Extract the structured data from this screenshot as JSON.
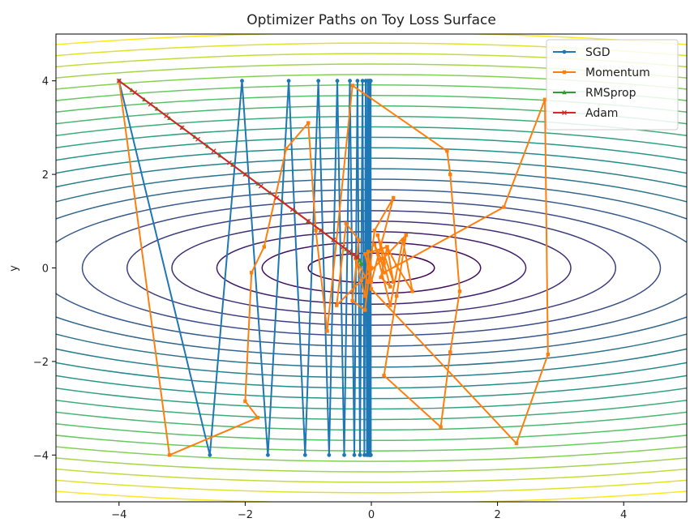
{
  "chart_data": {
    "type": "line",
    "title": "Optimizer Paths on Toy Loss Surface",
    "xlabel": "",
    "ylabel": "y",
    "xlim": [
      -5,
      5
    ],
    "ylim": [
      -5,
      5
    ],
    "x_ticks": [
      -4,
      -2,
      0,
      2,
      4
    ],
    "y_ticks": [
      -4,
      -2,
      0,
      2,
      4
    ],
    "x_tick_labels": [
      "−4",
      "−2",
      "0",
      "2",
      "4"
    ],
    "y_tick_labels": [
      "−4",
      "−2",
      "0",
      "2",
      "4"
    ],
    "grid": false,
    "legend_position": "top-right",
    "background": {
      "type": "contour",
      "function": "x^2 + 10*y^2",
      "levels": [
        1,
        3,
        6,
        10,
        15,
        21,
        28,
        36,
        45,
        55,
        66,
        78,
        91,
        105,
        120,
        136,
        153,
        171,
        190,
        210,
        231,
        253
      ],
      "colormap": [
        "#440154",
        "#3b528b",
        "#21918c",
        "#5ec962",
        "#fde725"
      ]
    },
    "series": [
      {
        "name": "SGD",
        "color": "#1f77b4",
        "marker": "circle",
        "x": [
          -4.0,
          -2.56,
          -2.05,
          -1.64,
          -1.31,
          -1.05,
          -0.84,
          -0.67,
          -0.54,
          -0.43,
          -0.34,
          -0.27,
          -0.22,
          -0.18,
          -0.14,
          -0.11,
          -0.09,
          -0.07,
          -0.06,
          -0.05,
          -0.04,
          -0.03,
          -0.025,
          -0.02,
          -0.015,
          -0.012,
          -0.01,
          -0.008
        ],
        "y": [
          4.0,
          -4.0,
          4.0,
          -4.0,
          4.0,
          -4.0,
          4.0,
          -4.0,
          4.0,
          -4.0,
          4.0,
          -4.0,
          4.0,
          -4.0,
          4.0,
          -4.0,
          4.0,
          -4.0,
          4.0,
          -4.0,
          4.0,
          -4.0,
          4.0,
          -4.0,
          4.0,
          -4.0,
          4.0,
          -4.0
        ]
      },
      {
        "name": "Momentum",
        "color": "#ff7f0e",
        "marker": "square",
        "x": [
          -4.0,
          -3.2,
          -1.8,
          -2.0,
          -1.9,
          -1.7,
          -1.35,
          -1.0,
          -0.88,
          -0.7,
          -0.3,
          1.2,
          1.25,
          1.4,
          1.25,
          1.1,
          0.2,
          0.4,
          0.55,
          -0.55,
          -0.4,
          -0.2,
          -0.3,
          -0.1,
          0.05,
          0.35,
          0.0,
          -0.1,
          0.25,
          0.35,
          0.1,
          0.2,
          0.3,
          0.15,
          0.25,
          0.4,
          0.65,
          0.5,
          0.3,
          0.05,
          0.15,
          0.2,
          2.1,
          2.75,
          2.8,
          2.3,
          0.0,
          -0.05,
          -0.1,
          -0.25,
          -0.05,
          0.0,
          -0.02,
          0.0
        ],
        "y": [
          4.0,
          -4.0,
          -3.2,
          -2.85,
          -0.1,
          0.45,
          2.55,
          3.1,
          0.8,
          -1.35,
          3.9,
          2.5,
          2.0,
          -0.5,
          -1.8,
          -3.4,
          -2.3,
          -0.6,
          0.7,
          -0.8,
          0.95,
          0.6,
          -0.7,
          -0.9,
          0.8,
          1.5,
          -0.3,
          0.3,
          0.45,
          -0.3,
          0.7,
          0.1,
          -0.4,
          -0.2,
          0.45,
          0.05,
          -0.5,
          0.6,
          -0.8,
          0.5,
          0.2,
          -0.1,
          1.3,
          3.6,
          -1.85,
          -3.75,
          -0.45,
          0.35,
          -0.6,
          0.2,
          -0.3,
          0.0,
          0.05,
          0.0
        ]
      },
      {
        "name": "RMSprop",
        "color": "#2ca02c",
        "marker": "triangle",
        "x": [
          -4.0,
          -3.8,
          -3.6,
          -3.4,
          -3.2,
          -3.0,
          -2.8,
          -2.6,
          -2.4,
          -2.2,
          -2.0,
          -1.8,
          -1.6,
          -1.4,
          -1.2,
          -1.0,
          -0.8,
          -0.6,
          -0.4,
          -0.3,
          -0.22,
          -0.18,
          -0.16,
          -0.15
        ],
        "y": [
          4.0,
          3.8,
          3.6,
          3.4,
          3.2,
          3.0,
          2.8,
          2.6,
          2.4,
          2.2,
          2.0,
          1.8,
          1.6,
          1.4,
          1.2,
          1.0,
          0.8,
          0.6,
          0.4,
          0.3,
          0.22,
          0.16,
          0.1,
          0.08
        ]
      },
      {
        "name": "Adam",
        "color": "#d62728",
        "marker": "x",
        "x": [
          -4.0,
          -3.75,
          -3.5,
          -3.25,
          -3.0,
          -2.75,
          -2.5,
          -2.25,
          -2.0,
          -1.75,
          -1.5,
          -1.25,
          -1.0,
          -0.8,
          -0.6,
          -0.45,
          -0.35,
          -0.28,
          -0.24,
          -0.22
        ],
        "y": [
          4.0,
          3.75,
          3.5,
          3.25,
          3.0,
          2.75,
          2.5,
          2.25,
          2.0,
          1.75,
          1.5,
          1.25,
          1.0,
          0.8,
          0.6,
          0.45,
          0.35,
          0.28,
          0.24,
          0.22
        ]
      }
    ]
  }
}
